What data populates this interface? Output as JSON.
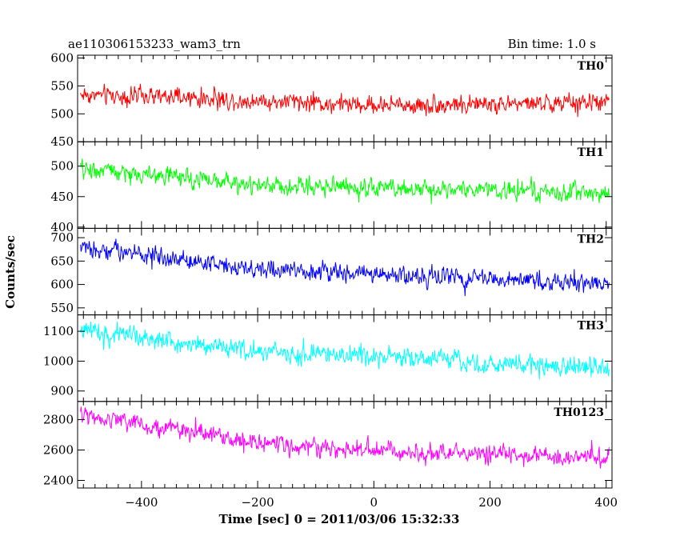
{
  "header": {
    "left": "ae110306153233_wam3_trn",
    "right": "Bin time: 1.0 s"
  },
  "chart_data": {
    "type": "line",
    "xlabel": "Time [sec] 0 = 2011/03/06 15:32:33",
    "ylabel": "Counts/sec",
    "xlim": [
      -510,
      410
    ],
    "x_ticks": [
      -400,
      -200,
      0,
      200,
      400
    ],
    "x_tick_labels": [
      "−400",
      "−200",
      "0",
      "200",
      "400"
    ],
    "bin_time": 1.0,
    "x_start": -505,
    "x_end": 405,
    "panels": [
      {
        "name": "TH0",
        "color": "#ff0000",
        "ylim": [
          450,
          605
        ],
        "y_ticks": [
          450,
          500,
          550,
          600
        ],
        "trend": [
          {
            "x": -505,
            "y": 535
          },
          {
            "x": 0,
            "y": 515
          },
          {
            "x": 405,
            "y": 520
          }
        ],
        "noise_amplitude": 35
      },
      {
        "name": "TH1",
        "color": "#00ff00",
        "ylim": [
          398,
          540
        ],
        "y_ticks": [
          400,
          450,
          500
        ],
        "trend": [
          {
            "x": -505,
            "y": 495
          },
          {
            "x": -200,
            "y": 470
          },
          {
            "x": 405,
            "y": 455
          }
        ],
        "noise_amplitude": 32
      },
      {
        "name": "TH2",
        "color": "#0000ff",
        "ylim": [
          535,
          720
        ],
        "y_ticks": [
          550,
          600,
          650,
          700
        ],
        "trend": [
          {
            "x": -505,
            "y": 680
          },
          {
            "x": -200,
            "y": 635
          },
          {
            "x": 405,
            "y": 600
          }
        ],
        "noise_amplitude": 40
      },
      {
        "name": "TH3",
        "color": "#00ffff",
        "ylim": [
          865,
          1155
        ],
        "y_ticks": [
          900,
          1000,
          1100
        ],
        "trend": [
          {
            "x": -505,
            "y": 1110
          },
          {
            "x": -200,
            "y": 1030
          },
          {
            "x": 405,
            "y": 975
          }
        ],
        "noise_amplitude": 70
      },
      {
        "name": "TH0123",
        "color": "#ff00ff",
        "ylim": [
          2350,
          2920
        ],
        "y_ticks": [
          2400,
          2600,
          2800
        ],
        "trend": [
          {
            "x": -505,
            "y": 2830
          },
          {
            "x": -150,
            "y": 2620
          },
          {
            "x": 405,
            "y": 2545
          }
        ],
        "noise_amplitude": 130
      }
    ]
  }
}
